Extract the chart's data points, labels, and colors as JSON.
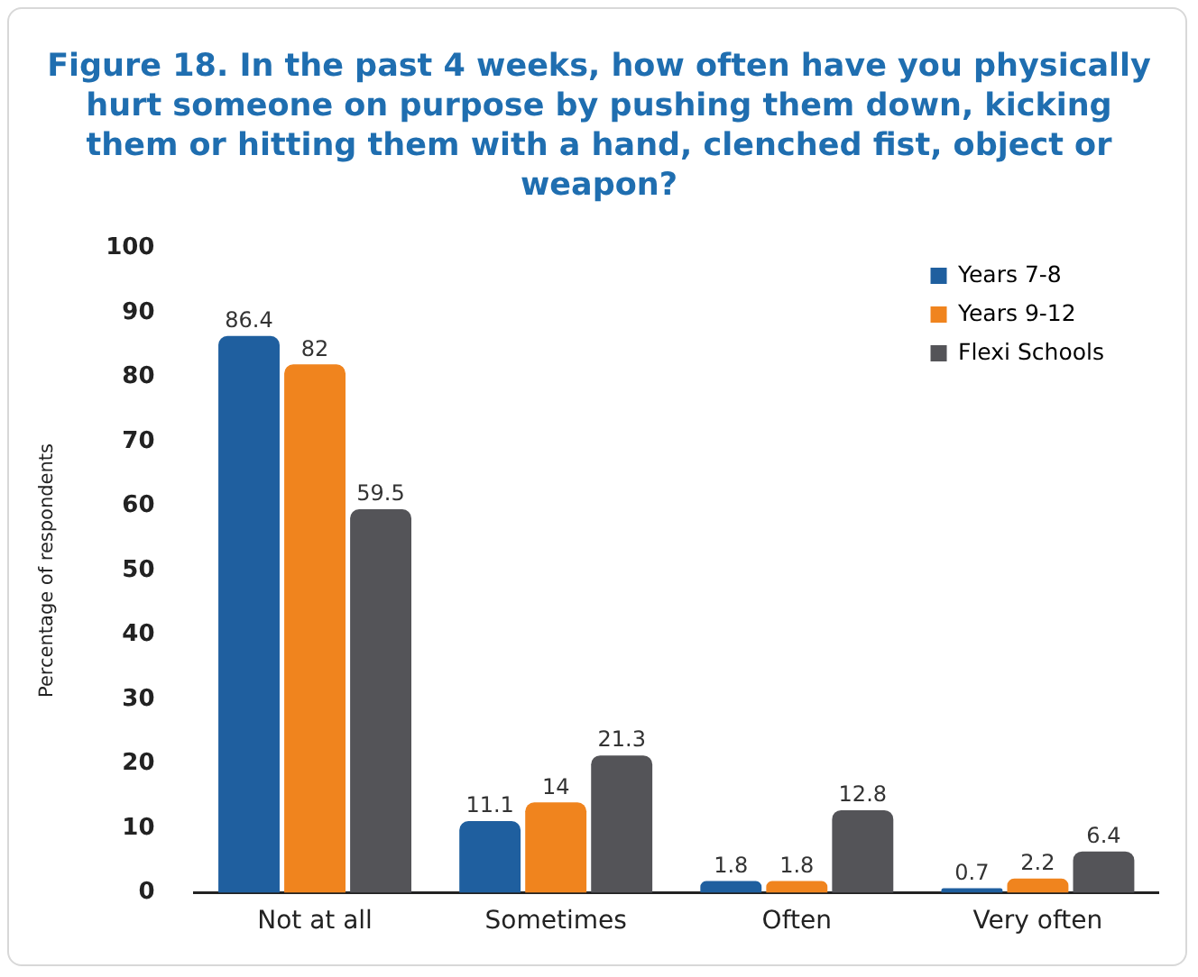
{
  "chart_data": {
    "type": "bar",
    "title": "Figure 18. In the past 4 weeks, how often have you physically hurt someone on purpose by pushing them down, kicking them or hitting them with a hand, clenched fist, object or weapon?",
    "ylabel": "Percentage of respondents",
    "categories": [
      "Not at all",
      "Sometimes",
      "Often",
      "Very often"
    ],
    "series": [
      {
        "name": "Years 7-8",
        "color": "#1f5f9f",
        "values": [
          86.4,
          11.1,
          1.8,
          0.7
        ]
      },
      {
        "name": "Years 9-12",
        "color": "#f0841e",
        "values": [
          82,
          14,
          1.8,
          2.2
        ]
      },
      {
        "name": "Flexi Schools",
        "color": "#545458",
        "values": [
          59.5,
          21.3,
          12.8,
          6.4
        ]
      }
    ],
    "ylim": [
      0,
      100
    ],
    "yticks": [
      0,
      10,
      20,
      30,
      40,
      50,
      60,
      70,
      80,
      90,
      100
    ],
    "grid": false,
    "legend": "top right",
    "data_labels": true
  }
}
